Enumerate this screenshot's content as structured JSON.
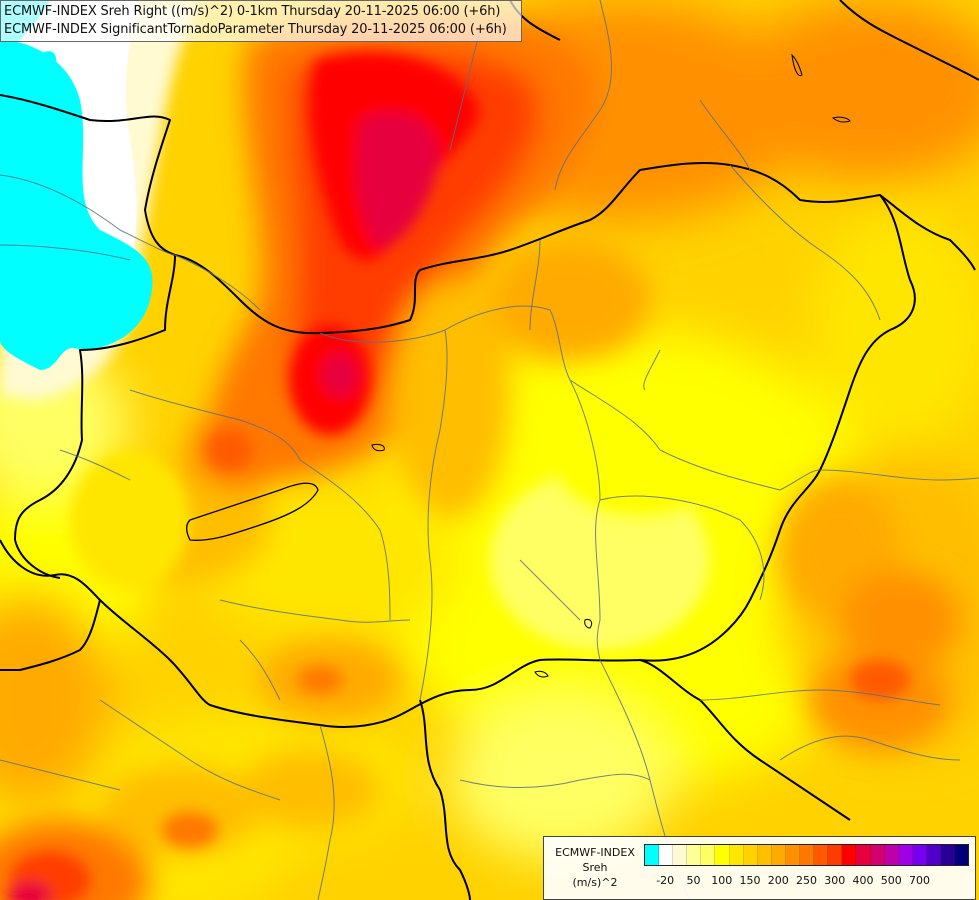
{
  "header": {
    "line1": "ECMWF-INDEX Sreh Right ((m/s)^2) 0-1km Thursday 20-11-2025 06:00 (+6h)",
    "line2": "ECMWF-INDEX SignificantTornadoParameter Thursday 20-11-2025 06:00 (+6h)"
  },
  "legend": {
    "title_line1": "ECMWF-INDEX",
    "title_line2": "Sreh",
    "title_line3": "(m/s)^2",
    "colors": [
      "#00ffff",
      "#ffffff",
      "#fffad2",
      "#ffff96",
      "#ffff64",
      "#ffff00",
      "#ffe600",
      "#ffd200",
      "#ffbe00",
      "#ffaa00",
      "#ff9100",
      "#ff7800",
      "#ff5a00",
      "#ff3c00",
      "#ff0000",
      "#e6003c",
      "#d2006e",
      "#be00aa",
      "#a000e6",
      "#7800f0",
      "#5000c8",
      "#280096",
      "#000078"
    ],
    "ticks": [
      "-20",
      "50",
      "100",
      "150",
      "200",
      "250",
      "300",
      "400",
      "500",
      "700"
    ]
  },
  "map": {
    "field_palette": {
      "lake": "#00ffff",
      "low": "#ffffff",
      "pale": "#fffad2",
      "yellow": "#ffff00",
      "yellow_orange": "#ffe600",
      "light_orange": "#ffd200",
      "orange": "#ffbe00",
      "deep_orange": "#ff9100",
      "red_orange": "#ff5a00",
      "red": "#ff0000",
      "crimson": "#e6003c"
    }
  }
}
